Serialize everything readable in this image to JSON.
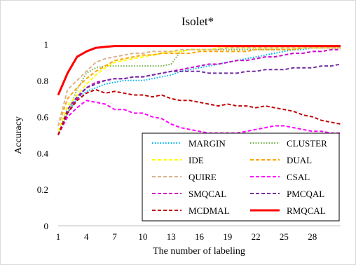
{
  "chart_data": {
    "type": "line",
    "title": "Isolet*",
    "xlabel": "The number of labeling",
    "ylabel": "Accuracy",
    "xlim": [
      1,
      31
    ],
    "ylim": [
      0,
      1
    ],
    "x_ticks": [
      "1",
      "4",
      "7",
      "10",
      "13",
      "16",
      "19",
      "22",
      "25",
      "28"
    ],
    "y_ticks": [
      "0",
      "0.2",
      "0.4",
      "0.6",
      "0.8",
      "1"
    ],
    "grid": false,
    "legend_position": "bottom-right",
    "series": [
      {
        "name": "MARGIN",
        "color": "#00b0f0",
        "dash": "dot",
        "x": [
          1,
          2,
          3,
          4,
          5,
          6,
          7,
          8,
          9,
          10,
          11,
          12,
          13,
          14,
          15,
          16,
          17,
          18,
          19,
          20,
          21,
          22,
          23,
          24,
          25,
          26,
          27,
          28,
          29,
          30,
          31
        ],
        "y": [
          0.5,
          0.62,
          0.7,
          0.74,
          0.76,
          0.78,
          0.79,
          0.8,
          0.8,
          0.8,
          0.81,
          0.82,
          0.83,
          0.85,
          0.86,
          0.87,
          0.88,
          0.89,
          0.9,
          0.91,
          0.92,
          0.93,
          0.94,
          0.95,
          0.96,
          0.97,
          0.97,
          0.98,
          0.98,
          0.98,
          0.98
        ]
      },
      {
        "name": "CLUSTER",
        "color": "#70ad47",
        "dash": "dot",
        "x": [
          1,
          2,
          3,
          4,
          5,
          6,
          7,
          8,
          9,
          10,
          11,
          12,
          13,
          14,
          15,
          16,
          17,
          18,
          19,
          20,
          21,
          22,
          23,
          24,
          25,
          26,
          27,
          28,
          29,
          30,
          31
        ],
        "y": [
          0.5,
          0.62,
          0.75,
          0.84,
          0.87,
          0.88,
          0.88,
          0.88,
          0.88,
          0.88,
          0.88,
          0.88,
          0.89,
          0.96,
          0.97,
          0.97,
          0.97,
          0.97,
          0.97,
          0.97,
          0.97,
          0.97,
          0.97,
          0.97,
          0.97,
          0.97,
          0.98,
          0.98,
          0.98,
          0.98,
          0.98
        ]
      },
      {
        "name": "IDE",
        "color": "#ffff00",
        "dash": "dash",
        "x": [
          1,
          2,
          3,
          4,
          5,
          6,
          7,
          8,
          9,
          10,
          11,
          12,
          13,
          14,
          15,
          16,
          17,
          18,
          19,
          20,
          21,
          22,
          23,
          24,
          25,
          26,
          27,
          28,
          29,
          30,
          31
        ],
        "y": [
          0.52,
          0.66,
          0.72,
          0.78,
          0.83,
          0.87,
          0.9,
          0.91,
          0.92,
          0.93,
          0.94,
          0.95,
          0.96,
          0.96,
          0.97,
          0.97,
          0.97,
          0.98,
          0.98,
          0.98,
          0.98,
          0.98,
          0.98,
          0.98,
          0.98,
          0.98,
          0.98,
          0.98,
          0.98,
          0.98,
          0.98
        ]
      },
      {
        "name": "DUAL",
        "color": "#ffa500",
        "dash": "dash",
        "x": [
          1,
          2,
          3,
          4,
          5,
          6,
          7,
          8,
          9,
          10,
          11,
          12,
          13,
          14,
          15,
          16,
          17,
          18,
          19,
          20,
          21,
          22,
          23,
          24,
          25,
          26,
          27,
          28,
          29,
          30,
          31
        ],
        "y": [
          0.55,
          0.7,
          0.76,
          0.81,
          0.85,
          0.88,
          0.91,
          0.92,
          0.93,
          0.94,
          0.94,
          0.95,
          0.95,
          0.95,
          0.95,
          0.96,
          0.96,
          0.96,
          0.96,
          0.96,
          0.96,
          0.97,
          0.97,
          0.97,
          0.97,
          0.97,
          0.98,
          0.98,
          0.98,
          0.98,
          0.98
        ]
      },
      {
        "name": "QUIRE",
        "color": "#d9b38c",
        "dash": "dash",
        "x": [
          1,
          2,
          3,
          4,
          5,
          6,
          7,
          8,
          9,
          10,
          11,
          12,
          13,
          14,
          15,
          16,
          17,
          18,
          19,
          20,
          21,
          22,
          23,
          24,
          25,
          26,
          27,
          28,
          29,
          30,
          31
        ],
        "y": [
          0.55,
          0.75,
          0.8,
          0.85,
          0.9,
          0.92,
          0.93,
          0.94,
          0.95,
          0.95,
          0.96,
          0.96,
          0.96,
          0.97,
          0.97,
          0.97,
          0.97,
          0.97,
          0.98,
          0.98,
          0.98,
          0.98,
          0.98,
          0.98,
          0.98,
          0.98,
          0.98,
          0.98,
          0.98,
          0.98,
          0.98
        ]
      },
      {
        "name": "CSAL",
        "color": "#ff00ff",
        "dash": "dash",
        "x": [
          1,
          2,
          3,
          4,
          5,
          6,
          7,
          8,
          9,
          10,
          11,
          12,
          13,
          14,
          15,
          16,
          17,
          18,
          19,
          20,
          21,
          22,
          23,
          24,
          25,
          26,
          27,
          28,
          29,
          30,
          31
        ],
        "y": [
          0.5,
          0.6,
          0.65,
          0.69,
          0.68,
          0.67,
          0.64,
          0.64,
          0.62,
          0.62,
          0.6,
          0.59,
          0.56,
          0.54,
          0.53,
          0.52,
          0.51,
          0.51,
          0.51,
          0.51,
          0.52,
          0.53,
          0.54,
          0.55,
          0.55,
          0.54,
          0.53,
          0.52,
          0.52,
          0.51,
          0.51
        ]
      },
      {
        "name": "SMQCAL",
        "color": "#cc00cc",
        "dash": "dash",
        "x": [
          1,
          2,
          3,
          4,
          5,
          6,
          7,
          8,
          9,
          10,
          11,
          12,
          13,
          14,
          15,
          16,
          17,
          18,
          19,
          20,
          21,
          22,
          23,
          24,
          25,
          26,
          27,
          28,
          29,
          30,
          31
        ],
        "y": [
          0.5,
          0.62,
          0.7,
          0.76,
          0.79,
          0.8,
          0.81,
          0.81,
          0.82,
          0.82,
          0.83,
          0.84,
          0.85,
          0.86,
          0.87,
          0.88,
          0.89,
          0.89,
          0.9,
          0.91,
          0.91,
          0.92,
          0.93,
          0.93,
          0.94,
          0.95,
          0.95,
          0.96,
          0.96,
          0.97,
          0.97
        ]
      },
      {
        "name": "PMCQAL",
        "color": "#7030a0",
        "dash": "dash",
        "x": [
          1,
          2,
          3,
          4,
          5,
          6,
          7,
          8,
          9,
          10,
          11,
          12,
          13,
          14,
          15,
          16,
          17,
          18,
          19,
          20,
          21,
          22,
          23,
          24,
          25,
          26,
          27,
          28,
          29,
          30,
          31
        ],
        "y": [
          0.5,
          0.64,
          0.71,
          0.76,
          0.78,
          0.8,
          0.81,
          0.81,
          0.82,
          0.82,
          0.83,
          0.84,
          0.85,
          0.85,
          0.85,
          0.85,
          0.84,
          0.84,
          0.84,
          0.84,
          0.85,
          0.85,
          0.86,
          0.86,
          0.86,
          0.87,
          0.87,
          0.87,
          0.88,
          0.88,
          0.89
        ]
      },
      {
        "name": "MCDMAL",
        "color": "#c00000",
        "dash": "dash",
        "x": [
          1,
          2,
          3,
          4,
          5,
          6,
          7,
          8,
          9,
          10,
          11,
          12,
          13,
          14,
          15,
          16,
          17,
          18,
          19,
          20,
          21,
          22,
          23,
          24,
          25,
          26,
          27,
          28,
          29,
          30,
          31
        ],
        "y": [
          0.5,
          0.62,
          0.69,
          0.73,
          0.75,
          0.73,
          0.74,
          0.73,
          0.72,
          0.72,
          0.71,
          0.72,
          0.7,
          0.69,
          0.69,
          0.68,
          0.67,
          0.66,
          0.67,
          0.66,
          0.66,
          0.65,
          0.66,
          0.65,
          0.64,
          0.63,
          0.61,
          0.6,
          0.58,
          0.57,
          0.56
        ]
      },
      {
        "name": "RMQCAL",
        "color": "#ff0000",
        "dash": "solid",
        "x": [
          1,
          2,
          3,
          4,
          5,
          6,
          7,
          8,
          9,
          10,
          11,
          12,
          13,
          14,
          15,
          16,
          17,
          18,
          19,
          20,
          21,
          22,
          23,
          24,
          25,
          26,
          27,
          28,
          29,
          30,
          31
        ],
        "y": [
          0.72,
          0.84,
          0.93,
          0.96,
          0.98,
          0.985,
          0.99,
          0.99,
          0.99,
          0.99,
          0.99,
          0.99,
          0.99,
          0.99,
          0.99,
          0.99,
          0.99,
          0.99,
          0.99,
          0.99,
          0.99,
          0.99,
          0.99,
          0.99,
          0.99,
          0.99,
          0.99,
          0.99,
          0.99,
          0.99,
          0.99
        ]
      }
    ]
  }
}
